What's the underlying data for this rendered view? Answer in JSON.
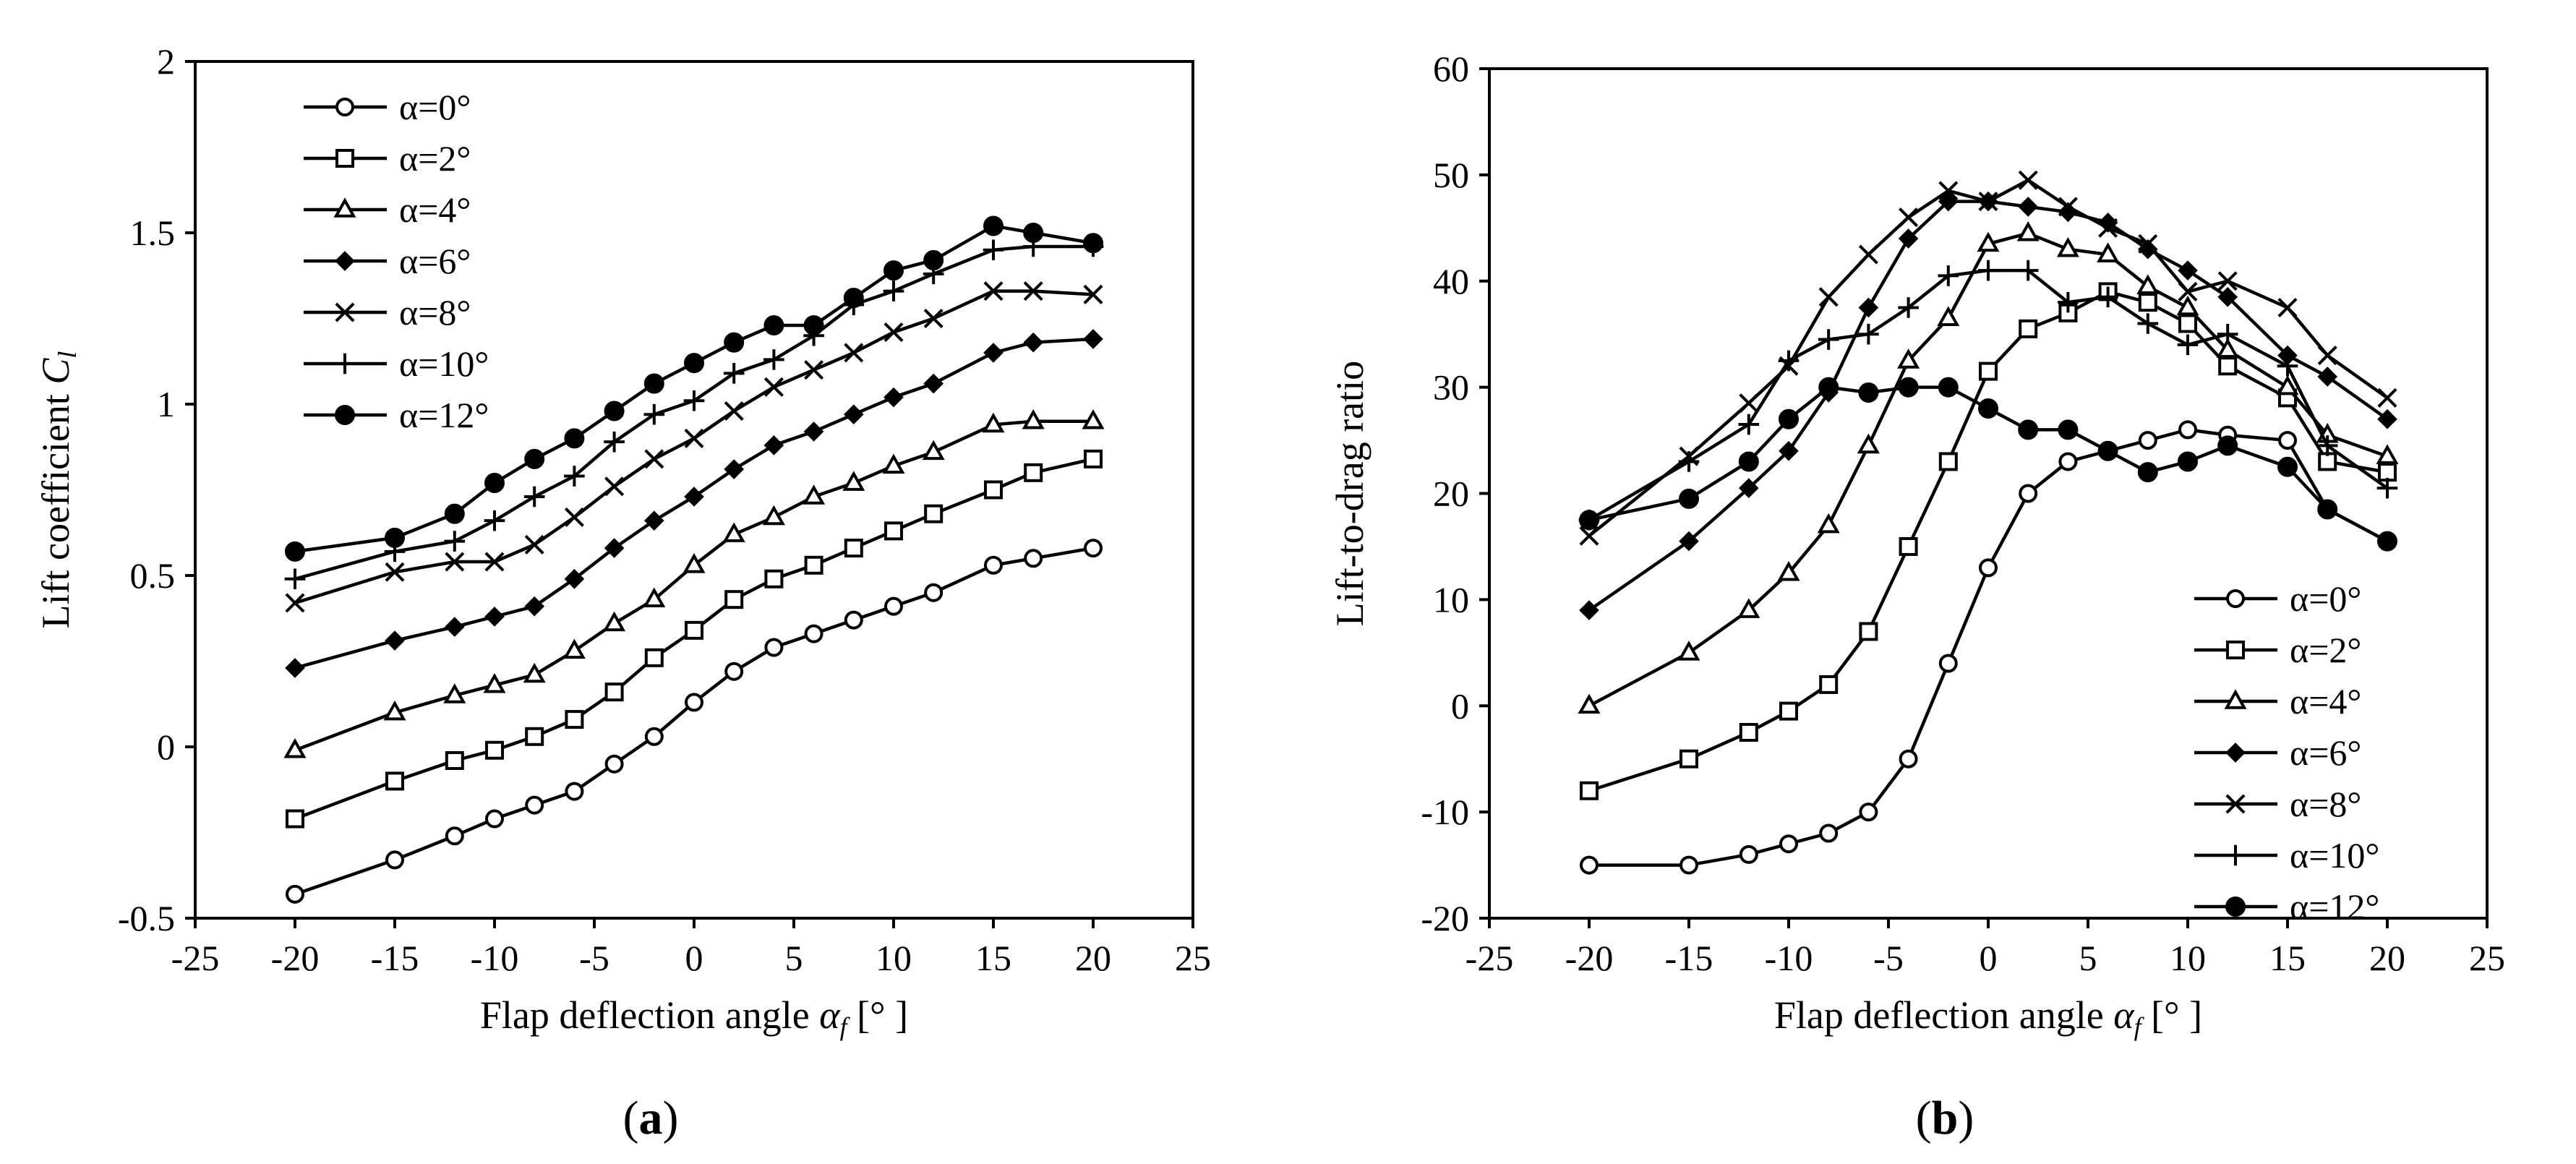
{
  "chart_data": [
    {
      "type": "line",
      "panel_label": "(a)",
      "panel_letter": "a",
      "xlabel": "Flap deflection angle αf [°]",
      "xlabel_parts": {
        "text": "Flap deflection angle ",
        "symbol": "α",
        "subscript": "f",
        "unit_open": " [° ",
        "unit_close": " ]"
      },
      "ylabel": "Lift coefficient Cl",
      "ylabel_parts": {
        "text": "Lift coefficient ",
        "symbol": "C",
        "subscript": "l"
      },
      "xlim": [
        -25,
        25
      ],
      "ylim": [
        -0.5,
        2
      ],
      "xticks": [
        "-25",
        "-20",
        "-15",
        "-10",
        "-5",
        "0",
        "5",
        "10",
        "15",
        "20",
        "25"
      ],
      "yticks": [
        "-0.5",
        "0",
        "0.5",
        "1",
        "1.5",
        "2"
      ],
      "grid": false,
      "legend_position": "top-left",
      "x": [
        -20,
        -15,
        -12,
        -10,
        -8,
        -6,
        -4,
        -2,
        0,
        2,
        4,
        6,
        8,
        10,
        12,
        15,
        17,
        20
      ],
      "series": [
        {
          "name": "α=0°",
          "marker": "circle-open",
          "values": [
            -0.43,
            -0.33,
            -0.26,
            -0.21,
            -0.17,
            -0.13,
            -0.05,
            0.03,
            0.13,
            0.22,
            0.29,
            0.33,
            0.37,
            0.41,
            0.45,
            0.53,
            0.55,
            0.58
          ]
        },
        {
          "name": "α=2°",
          "marker": "square-open",
          "values": [
            -0.21,
            -0.1,
            -0.04,
            -0.01,
            0.03,
            0.08,
            0.16,
            0.26,
            0.34,
            0.43,
            0.49,
            0.53,
            0.58,
            0.63,
            0.68,
            0.75,
            0.8,
            0.84
          ]
        },
        {
          "name": "α=4°",
          "marker": "triangle-open",
          "values": [
            -0.01,
            0.1,
            0.15,
            0.18,
            0.21,
            0.28,
            0.36,
            0.43,
            0.53,
            0.62,
            0.67,
            0.73,
            0.77,
            0.82,
            0.86,
            0.94,
            0.95,
            0.95
          ]
        },
        {
          "name": "α=6°",
          "marker": "diamond-filled",
          "values": [
            0.23,
            0.31,
            0.35,
            0.38,
            0.41,
            0.49,
            0.58,
            0.66,
            0.73,
            0.81,
            0.88,
            0.92,
            0.97,
            1.02,
            1.06,
            1.15,
            1.18,
            1.19
          ]
        },
        {
          "name": "α=8°",
          "marker": "x",
          "values": [
            0.42,
            0.51,
            0.54,
            0.54,
            0.59,
            0.67,
            0.76,
            0.84,
            0.9,
            0.98,
            1.05,
            1.1,
            1.15,
            1.21,
            1.25,
            1.33,
            1.33,
            1.32
          ]
        },
        {
          "name": "α=10°",
          "marker": "plus",
          "values": [
            0.49,
            0.57,
            0.6,
            0.66,
            0.73,
            0.79,
            0.89,
            0.97,
            1.01,
            1.09,
            1.13,
            1.2,
            1.29,
            1.33,
            1.38,
            1.45,
            1.46,
            1.46
          ]
        },
        {
          "name": "α=12°",
          "marker": "circle-filled",
          "values": [
            0.57,
            0.61,
            0.68,
            0.77,
            0.84,
            0.9,
            0.98,
            1.06,
            1.12,
            1.18,
            1.23,
            1.23,
            1.31,
            1.39,
            1.42,
            1.52,
            1.5,
            1.47
          ]
        }
      ]
    },
    {
      "type": "line",
      "panel_label": "(b)",
      "panel_letter": "b",
      "xlabel": "Flap deflection angle αf [°]",
      "xlabel_parts": {
        "text": "Flap deflection angle ",
        "symbol": "α",
        "subscript": "f",
        "unit_open": " [° ",
        "unit_close": " ]"
      },
      "ylabel": "Lift-to-drag ratio",
      "xlim": [
        -25,
        25
      ],
      "ylim": [
        -20,
        60
      ],
      "xticks": [
        "-25",
        "-20",
        "-15",
        "-10",
        "-5",
        "0",
        "5",
        "10",
        "15",
        "20",
        "25"
      ],
      "yticks": [
        "-20",
        "-10",
        "0",
        "10",
        "20",
        "30",
        "40",
        "50",
        "60"
      ],
      "grid": false,
      "legend_position": "bottom-right",
      "x": [
        -20,
        -15,
        -12,
        -10,
        -8,
        -6,
        -4,
        -2,
        0,
        2,
        4,
        6,
        8,
        10,
        12,
        15,
        17,
        20
      ],
      "series": [
        {
          "name": "α=0°",
          "marker": "circle-open",
          "values": [
            -15,
            -15,
            -14,
            -13,
            -12,
            -10,
            -5,
            4,
            13,
            20,
            23,
            24,
            25,
            26,
            25.5,
            25,
            18.5,
            15.5
          ]
        },
        {
          "name": "α=2°",
          "marker": "square-open",
          "values": [
            -8,
            -5,
            -2.5,
            -0.5,
            2,
            7,
            15,
            23,
            31.5,
            35.5,
            37,
            39,
            38,
            36,
            32,
            29,
            23,
            22
          ]
        },
        {
          "name": "α=4°",
          "marker": "triangle-open",
          "values": [
            0,
            5,
            9,
            12.5,
            17,
            24.5,
            32.5,
            36.5,
            43.5,
            44.5,
            43,
            42.5,
            39.5,
            37.5,
            33.5,
            30,
            25.5,
            23.5
          ]
        },
        {
          "name": "α=6°",
          "marker": "diamond-filled",
          "values": [
            9,
            15.5,
            20.5,
            24,
            29.5,
            37.5,
            44,
            47.5,
            47.5,
            47,
            46.5,
            45.5,
            43,
            41,
            38.5,
            33,
            31,
            27
          ]
        },
        {
          "name": "α=8°",
          "marker": "x",
          "values": [
            16,
            23.5,
            28.5,
            32,
            38.5,
            42.5,
            46,
            48.5,
            47.5,
            49.5,
            47,
            45,
            43.5,
            39,
            40,
            37.5,
            33,
            29
          ]
        },
        {
          "name": "α=10°",
          "marker": "plus",
          "values": [
            17.5,
            23,
            26.5,
            32.5,
            34.5,
            35,
            37.5,
            40.5,
            41,
            41,
            38,
            38.5,
            36,
            34,
            35,
            32,
            24.5,
            20.5
          ]
        },
        {
          "name": "α=12°",
          "marker": "circle-filled",
          "values": [
            17.5,
            19.5,
            23,
            27,
            30,
            29.5,
            30,
            30,
            28,
            26,
            26,
            24,
            22,
            23,
            24.5,
            22.5,
            18.5,
            15.5
          ]
        }
      ]
    }
  ]
}
